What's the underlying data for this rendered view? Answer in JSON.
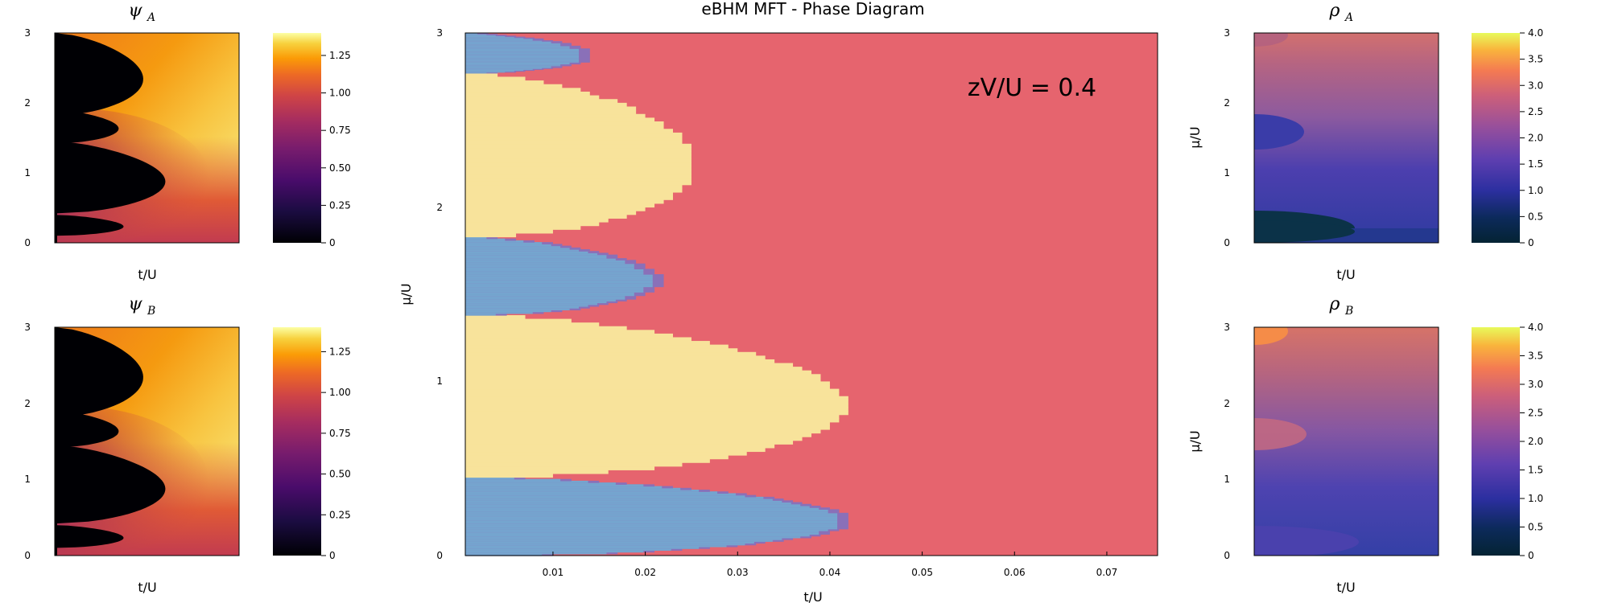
{
  "chart_data": [
    {
      "type": "heatmap",
      "title_symbol": "ψ",
      "title_subscript": "A",
      "xlabel": "t/U",
      "ylabel": "",
      "yticks": [
        "0",
        "1",
        "2",
        "3"
      ],
      "colorbar": {
        "colormap": "inferno",
        "range": [
          0,
          1.4
        ],
        "ticks": [
          "0",
          "0.25",
          "0.50",
          "0.75",
          "1.00",
          "1.25"
        ]
      },
      "mott_lobes_mu": [
        [
          0.1,
          0.4,
          0.028
        ],
        [
          0.42,
          1.45,
          0.045
        ],
        [
          1.42,
          1.9,
          0.026
        ],
        [
          1.82,
          3.0,
          0.036
        ]
      ]
    },
    {
      "type": "heatmap",
      "title_symbol": "ψ",
      "title_subscript": "B",
      "xlabel": "t/U",
      "ylabel": "",
      "yticks": [
        "0",
        "1",
        "2",
        "3"
      ],
      "colorbar": {
        "colormap": "inferno",
        "range": [
          0,
          1.4
        ],
        "ticks": [
          "0",
          "0.25",
          "0.50",
          "0.75",
          "1.00",
          "1.25"
        ]
      },
      "mott_lobes_mu": [
        [
          0.1,
          0.4,
          0.028
        ],
        [
          0.42,
          1.45,
          0.045
        ],
        [
          1.42,
          1.9,
          0.026
        ],
        [
          1.82,
          3.0,
          0.036
        ]
      ]
    },
    {
      "type": "heatmap",
      "title": "eBHM MFT - Phase Diagram",
      "xlabel": "t/U",
      "ylabel": "μ/U",
      "xlim": [
        0.0005,
        0.0755
      ],
      "ylim": [
        0,
        3
      ],
      "xticks": [
        "0.01",
        "0.02",
        "0.03",
        "0.04",
        "0.05",
        "0.06",
        "0.07"
      ],
      "yticks": [
        "0",
        "1",
        "2",
        "3"
      ],
      "annotation": "zV/U = 0.4",
      "colors": {
        "superfluid": "#e6646e",
        "density_wave": "#75a5cf",
        "mott_insulator": "#f8e39b",
        "supersolid": "#8a70b8"
      },
      "regions": [
        {
          "phase": "density_wave",
          "mu": [
            0.0,
            0.45
          ],
          "t_max": 0.0425
        },
        {
          "phase": "mott_insulator",
          "mu": [
            0.45,
            1.38
          ],
          "t_max": 0.0418
        },
        {
          "phase": "density_wave",
          "mu": [
            1.38,
            1.83
          ],
          "t_max": 0.0218
        },
        {
          "phase": "mott_insulator",
          "mu": [
            1.83,
            2.77
          ],
          "t_max": 0.0255
        },
        {
          "phase": "density_wave",
          "mu": [
            2.77,
            3.0
          ],
          "t_max": 0.0145
        }
      ]
    },
    {
      "type": "heatmap",
      "title_symbol": "ρ",
      "title_subscript": "A",
      "xlabel": "t/U",
      "ylabel": "μ/U",
      "yticks": [
        "0",
        "1",
        "2",
        "3"
      ],
      "colorbar": {
        "colormap": "thermal",
        "range": [
          0,
          4
        ],
        "ticks": [
          "0",
          "0.5",
          "1.0",
          "1.5",
          "2.0",
          "2.5",
          "3.0",
          "3.5",
          "4.0"
        ]
      }
    },
    {
      "type": "heatmap",
      "title_symbol": "ρ",
      "title_subscript": "B",
      "xlabel": "t/U",
      "ylabel": "μ/U",
      "yticks": [
        "0",
        "1",
        "2",
        "3"
      ],
      "colorbar": {
        "colormap": "thermal",
        "range": [
          0,
          4
        ],
        "ticks": [
          "0",
          "0.5",
          "1.0",
          "1.5",
          "2.0",
          "2.5",
          "3.0",
          "3.5",
          "4.0"
        ]
      }
    }
  ]
}
